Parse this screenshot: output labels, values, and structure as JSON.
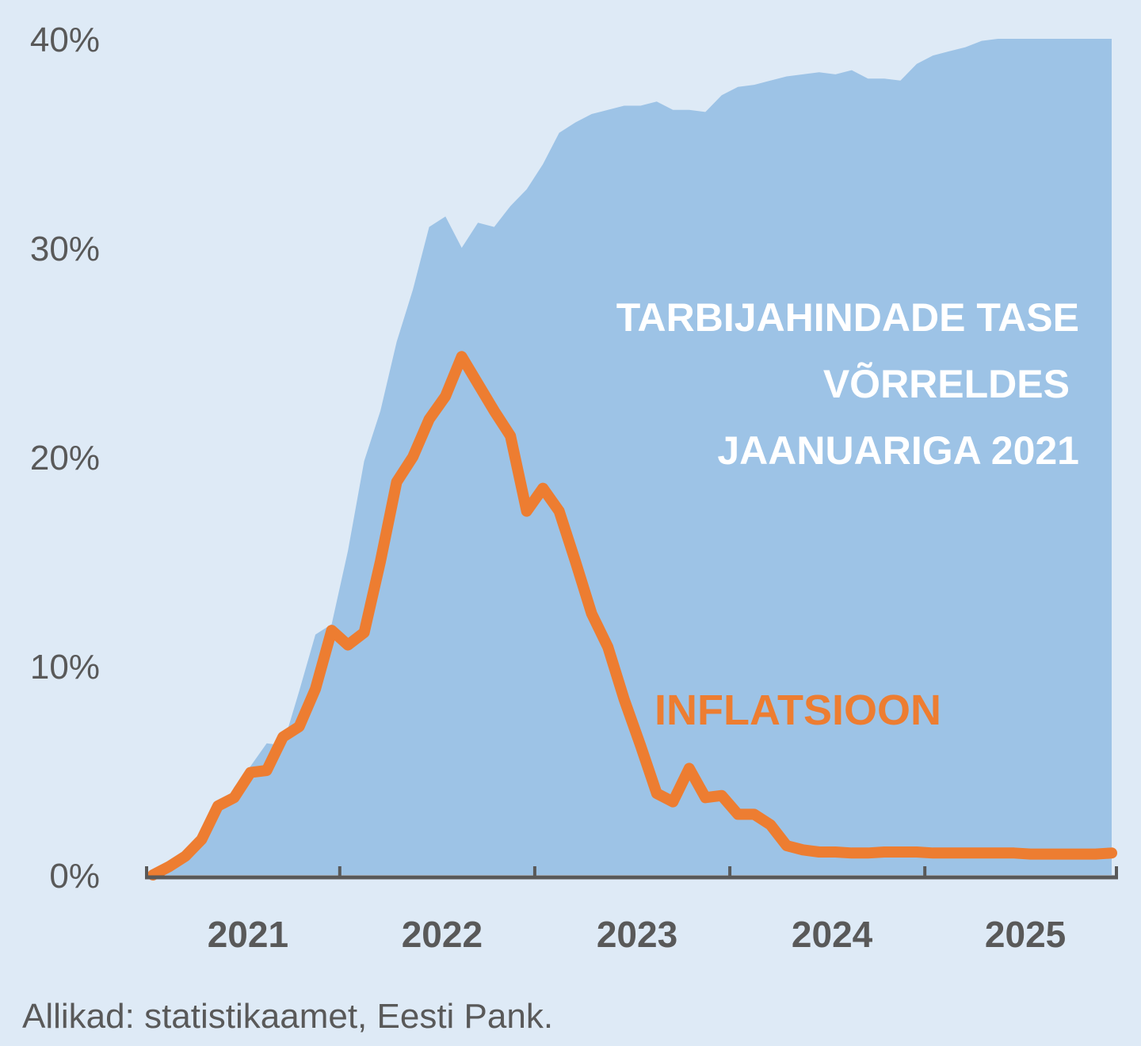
{
  "colors": {
    "background": "#deeaf6",
    "area": "#9dc3e6",
    "line": "#ed7d31",
    "axis": "#595959",
    "annotation_area": "#ffffff"
  },
  "source": "Allikad: statistikaamet, Eesti Pank.",
  "chart_data": {
    "type": "area",
    "title": "",
    "xlabel": "",
    "ylabel": "",
    "ylim": [
      0,
      40
    ],
    "y_ticks": [
      "0%",
      "10%",
      "20%",
      "30%",
      "40%"
    ],
    "x_ticks": [
      "2021",
      "2022",
      "2023",
      "2024",
      "2025"
    ],
    "grid": false,
    "legend": "none",
    "x": [
      "2021-01",
      "2021-02",
      "2021-03",
      "2021-04",
      "2021-05",
      "2021-06",
      "2021-07",
      "2021-08",
      "2021-09",
      "2021-10",
      "2021-11",
      "2021-12",
      "2022-01",
      "2022-02",
      "2022-03",
      "2022-04",
      "2022-05",
      "2022-06",
      "2022-07",
      "2022-08",
      "2022-09",
      "2022-10",
      "2022-11",
      "2022-12",
      "2023-01",
      "2023-02",
      "2023-03",
      "2023-04",
      "2023-05",
      "2023-06",
      "2023-07",
      "2023-08",
      "2023-09",
      "2023-10",
      "2023-11",
      "2023-12",
      "2024-01",
      "2024-02",
      "2024-03",
      "2024-04",
      "2024-05",
      "2024-06",
      "2024-07",
      "2024-08",
      "2024-09",
      "2024-10",
      "2024-11",
      "2024-12",
      "2025-01",
      "2025-02",
      "2025-03",
      "2025-04",
      "2025-05",
      "2025-06",
      "2025-07",
      "2025-08",
      "2025-09",
      "2025-10",
      "2025-11",
      "2025-12"
    ],
    "series": [
      {
        "name": "TARBIJAHINDADE TASE VÕRRELDES JAANUARIGA 2021",
        "kind": "area",
        "values": [
          0.0,
          0.3,
          0.8,
          1.5,
          2.8,
          4.2,
          5.2,
          6.3,
          6.2,
          8.8,
          11.5,
          12.0,
          15.5,
          19.8,
          22.2,
          25.5,
          28.0,
          31.0,
          31.5,
          30.0,
          31.2,
          31.0,
          32.0,
          32.8,
          34.0,
          35.5,
          36.0,
          36.4,
          36.6,
          36.8,
          36.8,
          37.0,
          36.6,
          36.6,
          36.5,
          37.3,
          37.7,
          37.8,
          38.0,
          38.2,
          38.3,
          38.4,
          38.3,
          38.5,
          38.1,
          38.1,
          38.0,
          38.8,
          39.2,
          39.4,
          39.6,
          39.9,
          40.0,
          40.0,
          40.0,
          40.0,
          40.0,
          40.0,
          40.0,
          40.0
        ]
      },
      {
        "name": "INFLATSIOON",
        "kind": "line",
        "values": [
          0.0,
          0.4,
          0.9,
          1.7,
          3.3,
          3.7,
          4.9,
          5.0,
          6.6,
          7.1,
          8.9,
          11.7,
          11.0,
          11.6,
          15.0,
          18.8,
          20.0,
          21.8,
          22.9,
          24.8,
          23.5,
          22.2,
          21.0,
          17.4,
          18.5,
          17.4,
          15.0,
          12.5,
          10.9,
          8.4,
          6.2,
          3.9,
          3.5,
          5.1,
          3.7,
          3.8,
          2.9,
          2.9,
          2.4,
          1.4,
          1.2,
          1.1,
          1.1,
          1.05,
          1.05,
          1.1,
          1.1,
          1.1,
          1.05,
          1.05,
          1.05,
          1.05,
          1.05,
          1.05,
          1.0,
          1.0,
          1.0,
          1.0,
          1.0,
          1.05
        ]
      }
    ],
    "annotations": [
      {
        "text_lines": [
          "TARBIJAHINDADE TASE",
          "VÕRRELDES",
          "JAANUARIGA 2021"
        ],
        "series": "area"
      },
      {
        "text": "INFLATSIOON",
        "series": "line"
      }
    ]
  }
}
